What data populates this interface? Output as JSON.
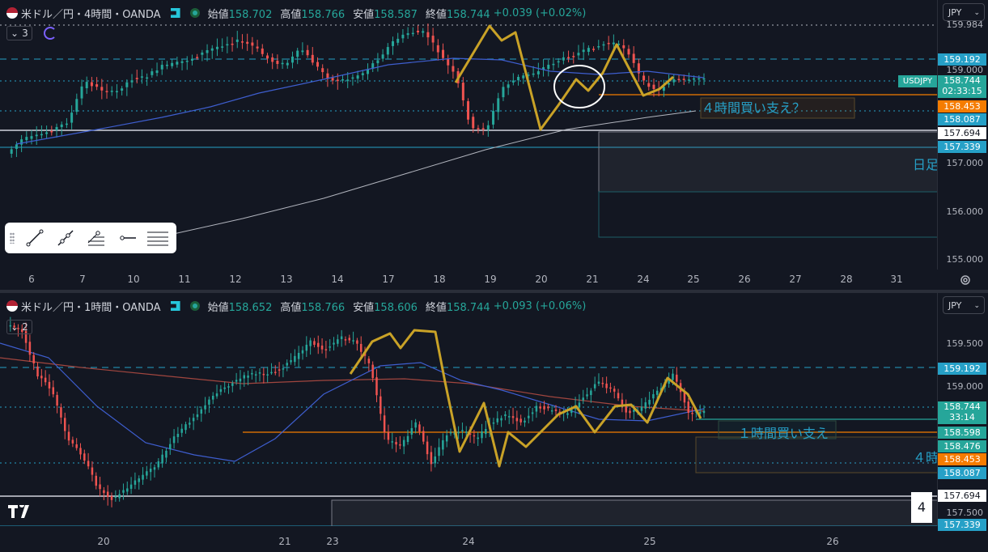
{
  "top": {
    "symbol": "米ドル／円・4時間・OANDA",
    "ohlc": [
      {
        "k": "始値",
        "v": "158.702"
      },
      {
        "k": "高値",
        "v": "158.766"
      },
      {
        "k": "安値",
        "v": "158.587"
      },
      {
        "k": "終値",
        "v": "158.744"
      }
    ],
    "change": "+0.039 (+0.02%)",
    "indicator_count": "3",
    "currency": "JPY",
    "price_levels": [
      "159.984",
      "159.000",
      "156.000",
      "155.000",
      "157.000"
    ],
    "tags": {
      "t159192": "159.192",
      "usdjpy_label": "USDJPY",
      "last": "158.744",
      "countdown": "02:33:15",
      "t158453": "158.453",
      "t158087": "158.087",
      "t157694": "157.694",
      "t157339": "157.339"
    },
    "annotation": "４時間買い支え？",
    "daily_note": "日足",
    "x_labels": [
      "6",
      "7",
      "10",
      "11",
      "12",
      "13",
      "14",
      "17",
      "18",
      "19",
      "20",
      "21",
      "24",
      "25",
      "26",
      "27",
      "28",
      "31"
    ]
  },
  "bottom": {
    "symbol": "米ドル／円・1時間・OANDA",
    "ohlc": [
      {
        "k": "始値",
        "v": "158.652"
      },
      {
        "k": "高値",
        "v": "158.766"
      },
      {
        "k": "安値",
        "v": "158.606"
      },
      {
        "k": "終値",
        "v": "158.744"
      }
    ],
    "change": "+0.093 (+0.06%)",
    "indicator_count": "2",
    "currency": "JPY",
    "price_levels": [
      "159.500",
      "159.000",
      "157.500"
    ],
    "tags": {
      "t159192": "159.192",
      "last": "158.744",
      "countdown": "33:14",
      "t158598": "158.598",
      "t158476": "158.476",
      "t158453": "158.453",
      "t158087": "158.087",
      "t157694": "157.694",
      "t157339": "157.339"
    },
    "annotation": "１時間買い支え",
    "note4h": "４時",
    "x_labels": [
      "20",
      "21",
      "23",
      "24",
      "25",
      "26"
    ],
    "page_badge": "4"
  },
  "colors": {
    "up": "#26a69a",
    "down": "#ef5350",
    "trend": "#c9a227",
    "ma_fast": "#3e5ecf",
    "ma_slow": "#a1463f"
  }
}
